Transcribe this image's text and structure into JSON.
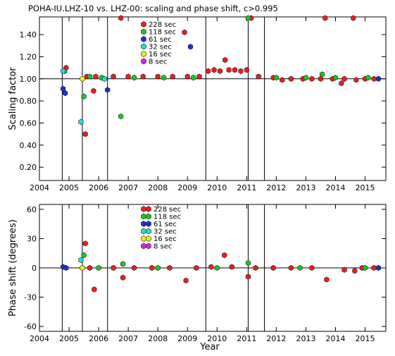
{
  "figure": {
    "title": "POHA-IU.LHZ-10 vs. LHZ-00: scaling and phase shift, c>0.995"
  },
  "colors": {
    "228 sec": "#ee1c1c",
    "118 sec": "#1ec81e",
    "61 sec": "#1e2ed2",
    "32 sec": "#20dede",
    "16 sec": "#eeee20",
    "8 sec": "#dd22dd"
  },
  "chart_data": [
    {
      "type": "scatter",
      "ylabel": "Scaling factor",
      "xlabel": "",
      "xlim": [
        2004,
        2015.7
      ],
      "ylim": [
        0.08,
        1.56
      ],
      "x_ticks": [
        "2004",
        "2005",
        "2006",
        "2007",
        "2008",
        "2009",
        "2010",
        "2011",
        "2012",
        "2013",
        "2014",
        "2015"
      ],
      "y_ticks": [
        "0.20",
        "0.40",
        "0.60",
        "0.80",
        "1.00",
        "1.20",
        "1.40"
      ],
      "reference_line": 1.0,
      "vertical_lines": [
        2004.77,
        2005.45,
        2006.3,
        2009.62,
        2011.05,
        2011.6
      ],
      "legend": [
        "228 sec",
        "118 sec",
        "61 sec",
        "32 sec",
        "16 sec",
        "8 sec"
      ],
      "series": [
        {
          "name": "228 sec",
          "points": [
            [
              2004.9,
              1.1
            ],
            [
              2005.55,
              0.5
            ],
            [
              2005.83,
              0.89
            ],
            [
              2006.75,
              1.55
            ],
            [
              2008.9,
              1.42
            ],
            [
              2010.27,
              1.17
            ],
            [
              2011.15,
              1.55
            ],
            [
              2013.65,
              1.55
            ],
            [
              2014.6,
              1.55
            ],
            [
              2014.2,
              0.96
            ],
            [
              2005.6,
              1.02
            ],
            [
              2005.9,
              1.02
            ],
            [
              2006.5,
              1.02
            ],
            [
              2007.0,
              1.02
            ],
            [
              2007.5,
              1.02
            ],
            [
              2008.0,
              1.02
            ],
            [
              2008.5,
              1.02
            ],
            [
              2009.0,
              1.02
            ],
            [
              2009.4,
              1.02
            ],
            [
              2009.7,
              1.07
            ],
            [
              2009.9,
              1.08
            ],
            [
              2010.1,
              1.07
            ],
            [
              2010.4,
              1.08
            ],
            [
              2010.6,
              1.08
            ],
            [
              2010.8,
              1.07
            ],
            [
              2011.0,
              1.08
            ],
            [
              2011.4,
              1.02
            ],
            [
              2011.9,
              1.01
            ],
            [
              2012.2,
              0.99
            ],
            [
              2012.5,
              1.0
            ],
            [
              2012.9,
              1.0
            ],
            [
              2013.2,
              1.0
            ],
            [
              2013.5,
              1.0
            ],
            [
              2013.9,
              1.0
            ],
            [
              2014.3,
              1.0
            ],
            [
              2014.7,
              0.99
            ],
            [
              2015.0,
              1.0
            ],
            [
              2015.3,
              1.0
            ]
          ]
        },
        {
          "name": "118 sec",
          "points": [
            [
              2004.85,
              1.07
            ],
            [
              2005.5,
              0.84
            ],
            [
              2006.75,
              0.66
            ],
            [
              2011.05,
              1.55
            ],
            [
              2013.55,
              1.04
            ],
            [
              2005.7,
              1.02
            ],
            [
              2006.1,
              1.01
            ],
            [
              2007.2,
              1.01
            ],
            [
              2008.2,
              1.01
            ],
            [
              2009.2,
              1.01
            ],
            [
              2012.0,
              1.01
            ],
            [
              2013.0,
              1.01
            ],
            [
              2014.0,
              1.01
            ],
            [
              2015.1,
              1.01
            ]
          ]
        },
        {
          "name": "61 sec",
          "points": [
            [
              2004.8,
              0.91
            ],
            [
              2004.87,
              0.87
            ],
            [
              2006.3,
              0.9
            ],
            [
              2009.1,
              1.29
            ],
            [
              2015.45,
              1.0
            ]
          ]
        },
        {
          "name": "32 sec",
          "points": [
            [
              2004.8,
              1.07
            ],
            [
              2005.4,
              0.61
            ],
            [
              2006.2,
              1.0
            ]
          ]
        },
        {
          "name": "16 sec",
          "points": [
            [
              2005.45,
              1.0
            ]
          ]
        },
        {
          "name": "8 sec",
          "points": []
        }
      ]
    },
    {
      "type": "scatter",
      "ylabel": "Phase shift (degrees)",
      "xlabel": "Year",
      "xlim": [
        2004,
        2015.7
      ],
      "ylim": [
        -65,
        65
      ],
      "x_ticks": [
        "2004",
        "2005",
        "2006",
        "2007",
        "2008",
        "2009",
        "2010",
        "2011",
        "2012",
        "2013",
        "2014",
        "2015"
      ],
      "y_ticks": [
        "60",
        "30",
        "0",
        "-30",
        "-60"
      ],
      "reference_line": 0,
      "vertical_lines": [
        2004.77,
        2005.45,
        2006.3,
        2009.62,
        2011.05,
        2011.6
      ],
      "legend": [
        "228 sec",
        "118 sec",
        "61 sec",
        "32 sec",
        "16 sec",
        "8 sec"
      ],
      "series": [
        {
          "name": "228 sec",
          "points": [
            [
              2005.55,
              25
            ],
            [
              2005.85,
              -22
            ],
            [
              2006.82,
              -10
            ],
            [
              2008.95,
              -13
            ],
            [
              2010.25,
              13
            ],
            [
              2011.05,
              -9
            ],
            [
              2013.7,
              -12
            ],
            [
              2014.3,
              -2
            ],
            [
              2014.65,
              -3
            ],
            [
              2005.7,
              0
            ],
            [
              2006.5,
              0
            ],
            [
              2007.2,
              0
            ],
            [
              2007.8,
              0
            ],
            [
              2008.4,
              0
            ],
            [
              2009.3,
              0
            ],
            [
              2009.8,
              1
            ],
            [
              2010.5,
              1
            ],
            [
              2011.3,
              0
            ],
            [
              2011.9,
              0
            ],
            [
              2012.5,
              0
            ],
            [
              2013.2,
              0
            ],
            [
              2014.9,
              0
            ],
            [
              2015.3,
              0
            ]
          ]
        },
        {
          "name": "118 sec",
          "points": [
            [
              2005.5,
              13
            ],
            [
              2006.82,
              4
            ],
            [
              2011.05,
              5
            ],
            [
              2006.0,
              0
            ],
            [
              2008.0,
              0
            ],
            [
              2010.0,
              0
            ],
            [
              2012.8,
              0
            ],
            [
              2015.0,
              0
            ]
          ]
        },
        {
          "name": "61 sec",
          "points": [
            [
              2004.8,
              1
            ],
            [
              2004.9,
              0
            ],
            [
              2015.45,
              0
            ]
          ]
        },
        {
          "name": "32 sec",
          "points": [
            [
              2005.4,
              8
            ]
          ]
        },
        {
          "name": "16 sec",
          "points": [
            [
              2005.45,
              0
            ]
          ]
        },
        {
          "name": "8 sec",
          "points": []
        }
      ]
    }
  ]
}
